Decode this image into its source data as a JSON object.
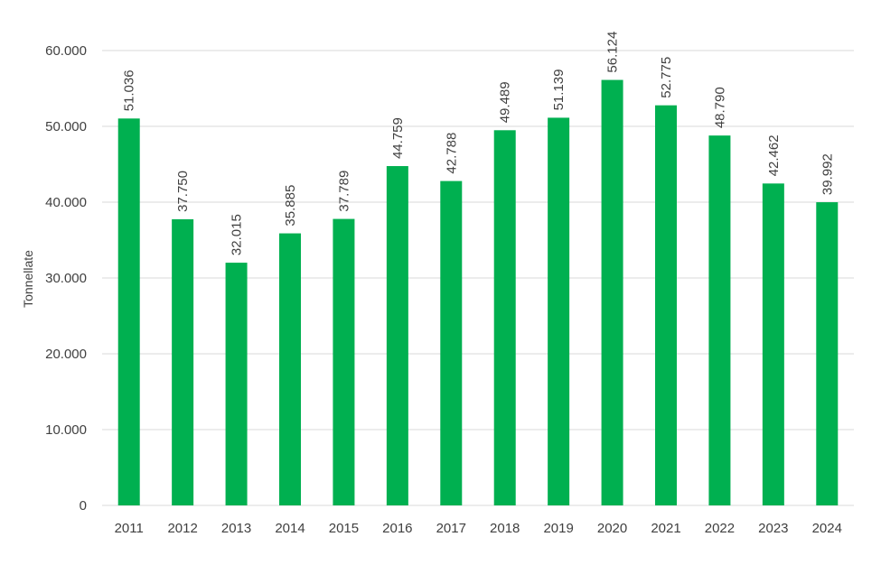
{
  "chart_data": {
    "type": "bar",
    "categories": [
      "2011",
      "2012",
      "2013",
      "2014",
      "2015",
      "2016",
      "2017",
      "2018",
      "2019",
      "2020",
      "2021",
      "2022",
      "2023",
      "2024"
    ],
    "values": [
      51036,
      37750,
      32015,
      35885,
      37789,
      44759,
      42788,
      49489,
      51139,
      56124,
      52775,
      48790,
      42462,
      39992
    ],
    "value_labels": [
      "51.036",
      "37.750",
      "32.015",
      "35.885",
      "37.789",
      "44.759",
      "42.788",
      "49.489",
      "51.139",
      "56.124",
      "52.775",
      "48.790",
      "42.462",
      "39.992"
    ],
    "yticks": [
      0,
      10000,
      20000,
      30000,
      40000,
      50000,
      60000
    ],
    "ytick_labels": [
      "0",
      "10.000",
      "20.000",
      "30.000",
      "40.000",
      "50.000",
      "60.000"
    ],
    "ylabel": "Tonnellate",
    "xlabel": "",
    "title": "",
    "ylim": [
      0,
      60000
    ],
    "grid": true,
    "bar_color": "#00b050",
    "grid_color": "#d9d9d9"
  }
}
